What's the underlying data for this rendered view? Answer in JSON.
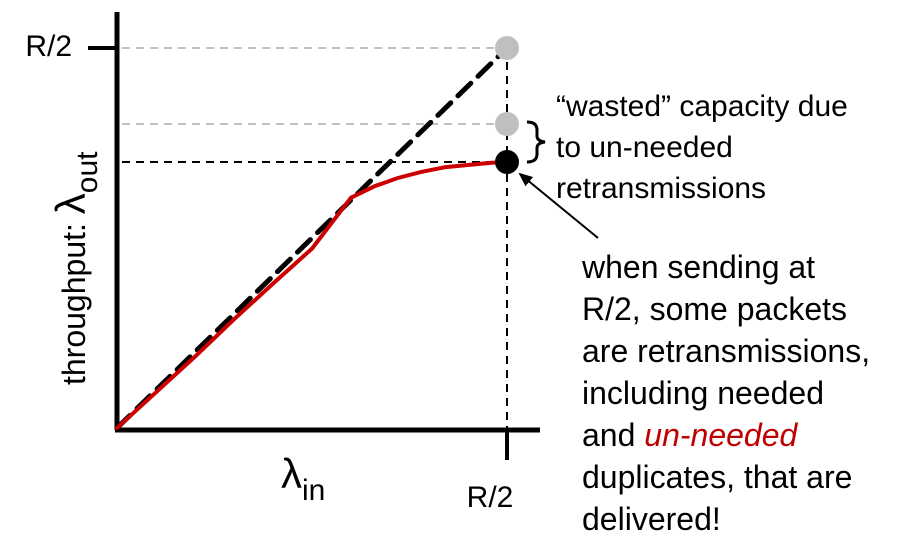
{
  "chart_data": {
    "type": "line",
    "title": "",
    "xlabel": {
      "symbol": "λ",
      "sub": "in"
    },
    "ylabel": {
      "prefix": "throughput: ",
      "symbol": "λ",
      "sub": "out"
    },
    "x_ticks": [
      "R/2"
    ],
    "y_ticks": [
      "R/2"
    ],
    "xlim": [
      0,
      0.5
    ],
    "ylim": [
      0,
      0.5
    ],
    "series": [
      {
        "style": "dashed",
        "color": "#000000",
        "x": [
          0,
          0.5
        ],
        "y": [
          0,
          0.5
        ]
      },
      {
        "style": "solid",
        "color": "#cc0000",
        "x": [
          0,
          0.05,
          0.1,
          0.15,
          0.2,
          0.25,
          0.3,
          0.33,
          0.36,
          0.39,
          0.42,
          0.45,
          0.48,
          0.5
        ],
        "y": [
          0,
          0.047,
          0.094,
          0.143,
          0.19,
          0.236,
          0.303,
          0.318,
          0.329,
          0.337,
          0.343,
          0.346,
          0.349,
          0.35
        ]
      }
    ],
    "points": [
      {
        "x": 0.5,
        "y": 0.5,
        "color": "#bfbfbf"
      },
      {
        "x": 0.5,
        "y": 0.4,
        "color": "#bfbfbf"
      },
      {
        "x": 0.5,
        "y": 0.35,
        "color": "#000000"
      }
    ],
    "reference_lines": [
      {
        "y": 0.5,
        "color": "#bfbfbf"
      },
      {
        "y": 0.4,
        "color": "#bfbfbf"
      },
      {
        "y": 0.35,
        "color": "#000000"
      }
    ]
  },
  "annotations": {
    "wasted": [
      "“wasted” capacity due",
      "to un-needed",
      "retransmissions"
    ],
    "sending_lines": [
      "when sending at",
      "R/2, some packets",
      "are retransmissions,",
      "including needed"
    ],
    "sending_and": "and ",
    "sending_emph": "un-needed",
    "sending_tail": [
      "duplicates, that are",
      "delivered!"
    ],
    "emph_color": "#c00000"
  }
}
